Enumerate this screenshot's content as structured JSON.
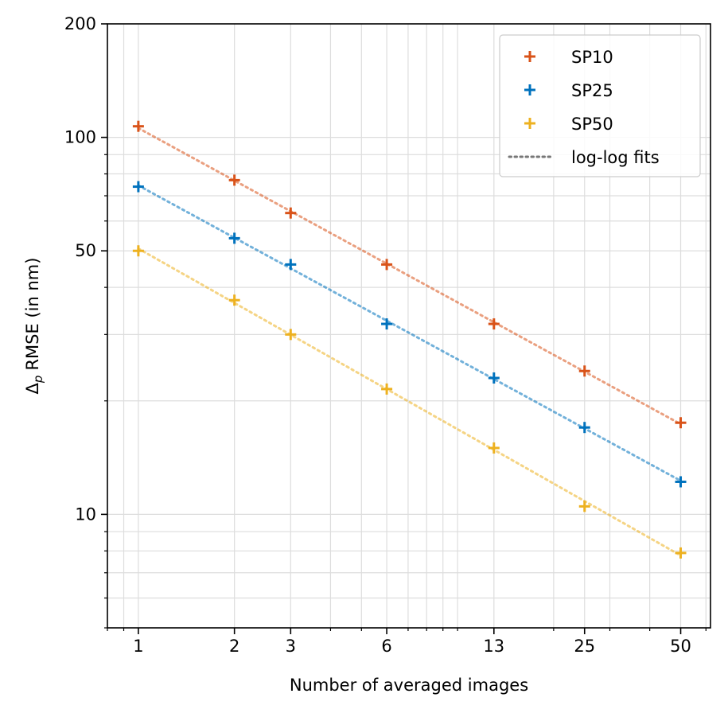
{
  "chart_data": {
    "type": "scatter",
    "scale": "log-log",
    "title": "",
    "xlabel": "Number of averaged images",
    "ylabel_main": "RMSE (in nm)",
    "ylabel_symbol": "Δ",
    "ylabel_subscript": "p",
    "xlim": [
      0.8,
      62
    ],
    "ylim": [
      5,
      200
    ],
    "x_ticks": [
      1,
      2,
      3,
      6,
      13,
      25,
      50
    ],
    "x_tick_labels": [
      "1",
      "2",
      "3",
      "6",
      "13",
      "25",
      "50"
    ],
    "y_ticks": [
      10,
      50,
      100,
      200
    ],
    "y_tick_labels": [
      "10",
      "50",
      "100",
      "200"
    ],
    "grid": true,
    "legend_location": "top-right",
    "series": [
      {
        "name": "SP10",
        "color": "#d95319",
        "marker": "plus",
        "x": [
          1,
          2,
          3,
          6,
          13,
          25,
          50
        ],
        "values": [
          107,
          77,
          63,
          46,
          32,
          24,
          17.5
        ]
      },
      {
        "name": "SP25",
        "color": "#0072bd",
        "marker": "plus",
        "x": [
          1,
          2,
          3,
          6,
          13,
          25,
          50
        ],
        "values": [
          74,
          54,
          46,
          32,
          23,
          17,
          12.2
        ]
      },
      {
        "name": "SP50",
        "color": "#edb120",
        "marker": "plus",
        "x": [
          1,
          2,
          3,
          6,
          13,
          25,
          50
        ],
        "values": [
          50,
          37,
          30,
          21.5,
          15,
          10.5,
          7.9
        ]
      }
    ],
    "fit": {
      "label": "log-log fits",
      "style": "dotted",
      "color": "#777777"
    }
  }
}
